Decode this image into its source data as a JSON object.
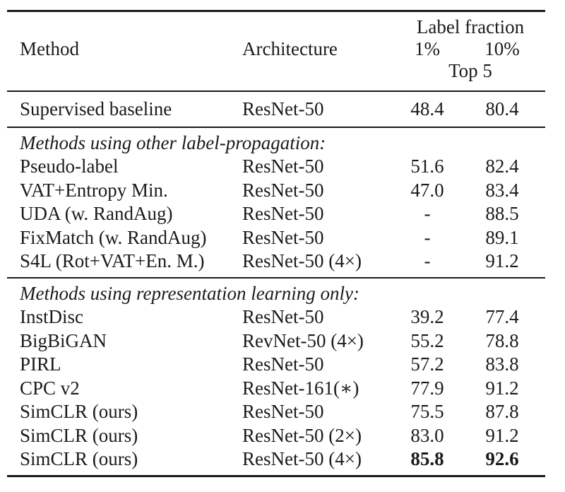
{
  "colors": {
    "background": "#ffffff",
    "text": "#1b1b1b",
    "rule": "#1a1a1a"
  },
  "table": {
    "header": {
      "group_label": "Label fraction",
      "columns": [
        "Method",
        "Architecture",
        "1%",
        "10%"
      ],
      "subheader": "Top 5"
    },
    "baseline_row": {
      "method": "Supervised baseline",
      "architecture": "ResNet-50",
      "top5_1pct": "48.4",
      "top5_10pct": "80.4"
    },
    "sections": [
      {
        "title": "Methods using other label-propagation:",
        "rows": [
          {
            "method": "Pseudo-label",
            "architecture": "ResNet-50",
            "top5_1pct": "51.6",
            "top5_10pct": "82.4",
            "bold": false
          },
          {
            "method": "VAT+Entropy Min.",
            "architecture": "ResNet-50",
            "top5_1pct": "47.0",
            "top5_10pct": "83.4",
            "bold": false
          },
          {
            "method": "UDA (w. RandAug)",
            "architecture": "ResNet-50",
            "top5_1pct": "-",
            "top5_10pct": "88.5",
            "bold": false
          },
          {
            "method": "FixMatch (w. RandAug)",
            "architecture": "ResNet-50",
            "top5_1pct": "-",
            "top5_10pct": "89.1",
            "bold": false
          },
          {
            "method": "S4L (Rot+VAT+En. M.)",
            "architecture": "ResNet-50 (4×)",
            "top5_1pct": "-",
            "top5_10pct": "91.2",
            "bold": false
          }
        ]
      },
      {
        "title": "Methods using representation learning only:",
        "rows": [
          {
            "method": "InstDisc",
            "architecture": "ResNet-50",
            "top5_1pct": "39.2",
            "top5_10pct": "77.4",
            "bold": false
          },
          {
            "method": "BigBiGAN",
            "architecture": "RevNet-50 (4×)",
            "top5_1pct": "55.2",
            "top5_10pct": "78.8",
            "bold": false
          },
          {
            "method": "PIRL",
            "architecture": "ResNet-50",
            "top5_1pct": "57.2",
            "top5_10pct": "83.8",
            "bold": false
          },
          {
            "method": "CPC v2",
            "architecture": "ResNet-161(∗)",
            "top5_1pct": "77.9",
            "top5_10pct": "91.2",
            "bold": false
          },
          {
            "method": "SimCLR (ours)",
            "architecture": "ResNet-50",
            "top5_1pct": "75.5",
            "top5_10pct": "87.8",
            "bold": false
          },
          {
            "method": "SimCLR (ours)",
            "architecture": "ResNet-50 (2×)",
            "top5_1pct": "83.0",
            "top5_10pct": "91.2",
            "bold": false
          },
          {
            "method": "SimCLR (ours)",
            "architecture": "ResNet-50 (4×)",
            "top5_1pct": "85.8",
            "top5_10pct": "92.6",
            "bold": true
          }
        ]
      }
    ]
  }
}
